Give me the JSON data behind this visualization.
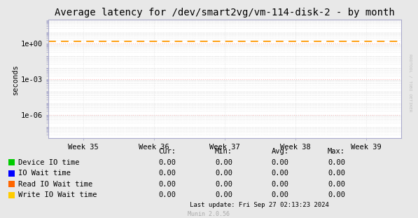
{
  "title": "Average latency for /dev/smart2vg/vm-114-disk-2 - by month",
  "ylabel": "seconds",
  "bg_color": "#e8e8e8",
  "plot_bg_color": "#ffffff",
  "grid_color_major": "#ffbbbb",
  "grid_color_minor": "#dddddd",
  "x_ticks_labels": [
    "Week 35",
    "Week 36",
    "Week 37",
    "Week 38",
    "Week 39"
  ],
  "x_ticks_pos": [
    1,
    2,
    3,
    4,
    5
  ],
  "xlim": [
    0.5,
    5.5
  ],
  "dashed_line_y": 1.5,
  "dashed_line_color": "#ff9900",
  "legend_entries": [
    {
      "label": "Device IO time",
      "color": "#00cc00"
    },
    {
      "label": "IO Wait time",
      "color": "#0000ff"
    },
    {
      "label": "Read IO Wait time",
      "color": "#ff6600"
    },
    {
      "label": "Write IO Wait time",
      "color": "#ffcc00"
    }
  ],
  "table_headers": [
    "Cur:",
    "Min:",
    "Avg:",
    "Max:"
  ],
  "table_values": [
    [
      0.0,
      0.0,
      0.0,
      0.0
    ],
    [
      0.0,
      0.0,
      0.0,
      0.0
    ],
    [
      0.0,
      0.0,
      0.0,
      0.0
    ],
    [
      0.0,
      0.0,
      0.0,
      0.0
    ]
  ],
  "last_update": "Last update: Fri Sep 27 02:13:23 2024",
  "munin_version": "Munin 2.0.56",
  "watermark": "RRDTOOL / TOBI OETIKER",
  "title_fontsize": 10,
  "axis_fontsize": 7.5,
  "legend_fontsize": 7.5
}
